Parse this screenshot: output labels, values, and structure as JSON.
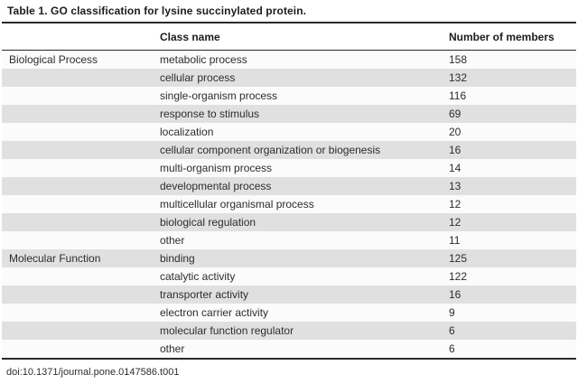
{
  "page": {
    "title": "Table 1. GO classification for lysine succinylated protein.",
    "footer_doi": "doi:10.1371/journal.pone.0147586.t001"
  },
  "table": {
    "header": {
      "section": "",
      "class_name": "Class name",
      "members": "Number of members"
    },
    "sections": [
      {
        "name": "Biological Process",
        "rows": [
          {
            "class_name": "metabolic process",
            "members": "158"
          },
          {
            "class_name": "cellular process",
            "members": "132"
          },
          {
            "class_name": "single-organism process",
            "members": "116"
          },
          {
            "class_name": "response to stimulus",
            "members": "69"
          },
          {
            "class_name": "localization",
            "members": "20"
          },
          {
            "class_name": "cellular component organization or biogenesis",
            "members": "16"
          },
          {
            "class_name": "multi-organism process",
            "members": "14"
          },
          {
            "class_name": "developmental process",
            "members": "13"
          },
          {
            "class_name": "multicellular organismal process",
            "members": "12"
          },
          {
            "class_name": "biological regulation",
            "members": "12"
          },
          {
            "class_name": "other",
            "members": "11"
          }
        ]
      },
      {
        "name": "Molecular Function",
        "rows": [
          {
            "class_name": "binding",
            "members": "125"
          },
          {
            "class_name": "catalytic activity",
            "members": "122"
          },
          {
            "class_name": "transporter activity",
            "members": "16"
          },
          {
            "class_name": "electron carrier activity",
            "members": "9"
          },
          {
            "class_name": "molecular function regulator",
            "members": "6"
          },
          {
            "class_name": "other",
            "members": "6"
          }
        ]
      }
    ]
  },
  "colors": {
    "stripe_gray": "#e0e0e0",
    "row_light": "#fbfbfb",
    "rule_dark": "#2b2b2b",
    "text": "#2d2d2d"
  }
}
